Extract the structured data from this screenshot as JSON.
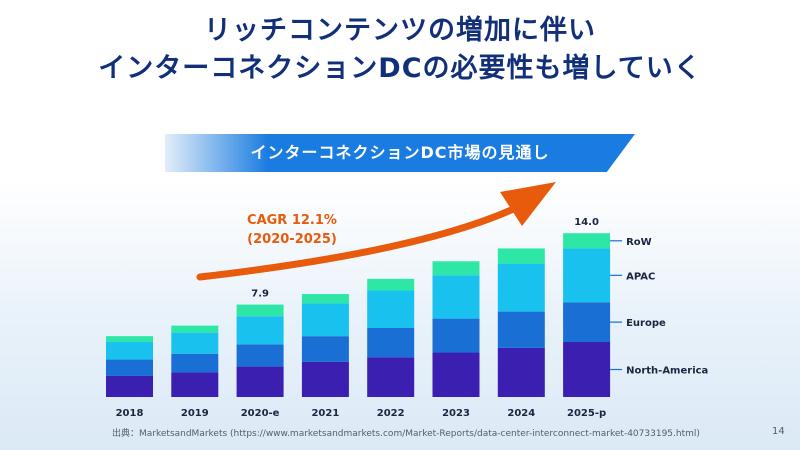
{
  "page": {
    "title_line1": "リッチコンテンツの増加に伴い",
    "title_line2": "インターコネクションDCの必要性も増していく",
    "banner": "インターコネクションDC市場の見通し",
    "source": "出典：MarketsandMarkets (https://www.marketsandmarkets.com/Market-Reports/data-center-interconnect-market-40733195.html)",
    "page_number": "14"
  },
  "colors": {
    "title": "#12307a",
    "north_america": "#3a1fb0",
    "europe": "#1a6fd4",
    "apac": "#19c1ef",
    "row": "#2ee6a6",
    "arrow": "#e85a0c",
    "legend_line": "#1a6fd4"
  },
  "chart_data": {
    "type": "bar",
    "stacked": true,
    "categories": [
      "2018",
      "2019",
      "2020-e",
      "2021",
      "2022",
      "2023",
      "2024",
      "2025-p"
    ],
    "series": [
      {
        "name": "North-America",
        "values": [
          1.8,
          2.1,
          2.6,
          3.0,
          3.4,
          3.8,
          4.2,
          4.7
        ]
      },
      {
        "name": "Europe",
        "values": [
          1.4,
          1.6,
          1.9,
          2.2,
          2.5,
          2.9,
          3.1,
          3.4
        ]
      },
      {
        "name": "APAC",
        "values": [
          1.5,
          1.8,
          2.4,
          2.8,
          3.2,
          3.7,
          4.1,
          4.6
        ]
      },
      {
        "name": "RoW",
        "values": [
          0.5,
          0.6,
          1.0,
          0.8,
          1.0,
          1.2,
          1.3,
          1.3
        ]
      }
    ],
    "value_labels": [
      {
        "category": "2020-e",
        "label": "7.9"
      },
      {
        "category": "2025-p",
        "label": "14.0"
      }
    ],
    "annotation": {
      "line1": "CAGR 12.1%",
      "line2": "(2020-2025)"
    },
    "legend": [
      "RoW",
      "APAC",
      "Europe",
      "North-America"
    ],
    "ylim": [
      0,
      14
    ]
  }
}
